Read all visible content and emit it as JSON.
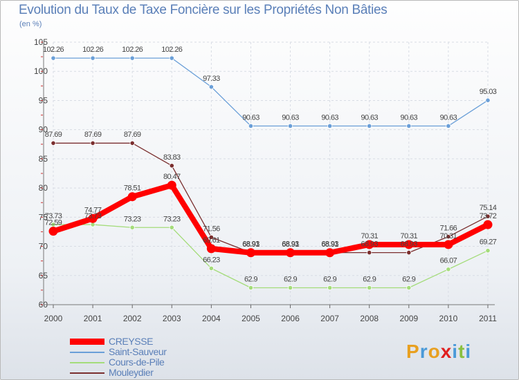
{
  "chart_data": {
    "type": "line",
    "title": "Evolution du Taux de Taxe Foncière sur les Propriétés Non Bâties",
    "subtitle": "(en %)",
    "categories": [
      "2000",
      "2001",
      "2002",
      "2003",
      "2004",
      "2005",
      "2006",
      "2007",
      "2008",
      "2009",
      "2010",
      "2011"
    ],
    "ylim": [
      60,
      105
    ],
    "yticks": [
      60,
      65,
      70,
      75,
      80,
      85,
      90,
      95,
      100,
      105
    ],
    "grid": true,
    "series": [
      {
        "name": "CREYSSE",
        "color": "#ff0000",
        "values": [
          72.59,
          74.77,
          78.51,
          80.47,
          69.61,
          68.91,
          68.91,
          68.91,
          70.31,
          70.31,
          70.31,
          73.72
        ],
        "labels": [
          "72.59",
          "74.77",
          "78.51",
          "80.47",
          "69.61",
          "68.91",
          "68.91",
          "68.91",
          "70.31",
          "70.31",
          "70.31",
          "73.72"
        ]
      },
      {
        "name": "Saint-Sauveur",
        "color": "#6a9fd8",
        "values": [
          102.26,
          102.26,
          102.26,
          102.26,
          97.33,
          90.63,
          90.63,
          90.63,
          90.63,
          90.63,
          90.63,
          95.03
        ],
        "labels": [
          "102.26",
          "102.26",
          "102.26",
          "102.26",
          "97.33",
          "90.63",
          "90.63",
          "90.63",
          "90.63",
          "90.63",
          "90.63",
          "95.03"
        ]
      },
      {
        "name": "Cours-de-Pile",
        "color": "#a4dc7a",
        "values": [
          73.73,
          73.73,
          73.23,
          73.23,
          66.23,
          62.9,
          62.9,
          62.9,
          62.9,
          62.9,
          66.07,
          69.27
        ],
        "labels": [
          "73.73",
          "73.73",
          "73.23",
          "73.23",
          "66.23",
          "62.9",
          "62.9",
          "62.9",
          "62.9",
          "62.9",
          "66.07",
          "69.27"
        ]
      },
      {
        "name": "Mouleydier",
        "color": "#7a2e2e",
        "values": [
          87.69,
          87.69,
          87.69,
          83.83,
          71.56,
          68.93,
          68.93,
          68.93,
          68.93,
          68.93,
          71.66,
          75.14
        ],
        "labels": [
          "87.69",
          "87.69",
          "87.69",
          "83.83",
          "71.56",
          "68.93",
          "68.93",
          "68.93",
          "68.93",
          "68.93",
          "71.66",
          "75.14"
        ]
      }
    ]
  },
  "branding": {
    "logo_letters": [
      "P",
      "r",
      "o",
      "x",
      "i",
      "t",
      "i"
    ],
    "logo_colors": [
      "#e8a020",
      "#4a9ad8",
      "#e8a020",
      "#e02020",
      "#4a9ad8",
      "#8ac040",
      "#4a9ad8"
    ]
  }
}
